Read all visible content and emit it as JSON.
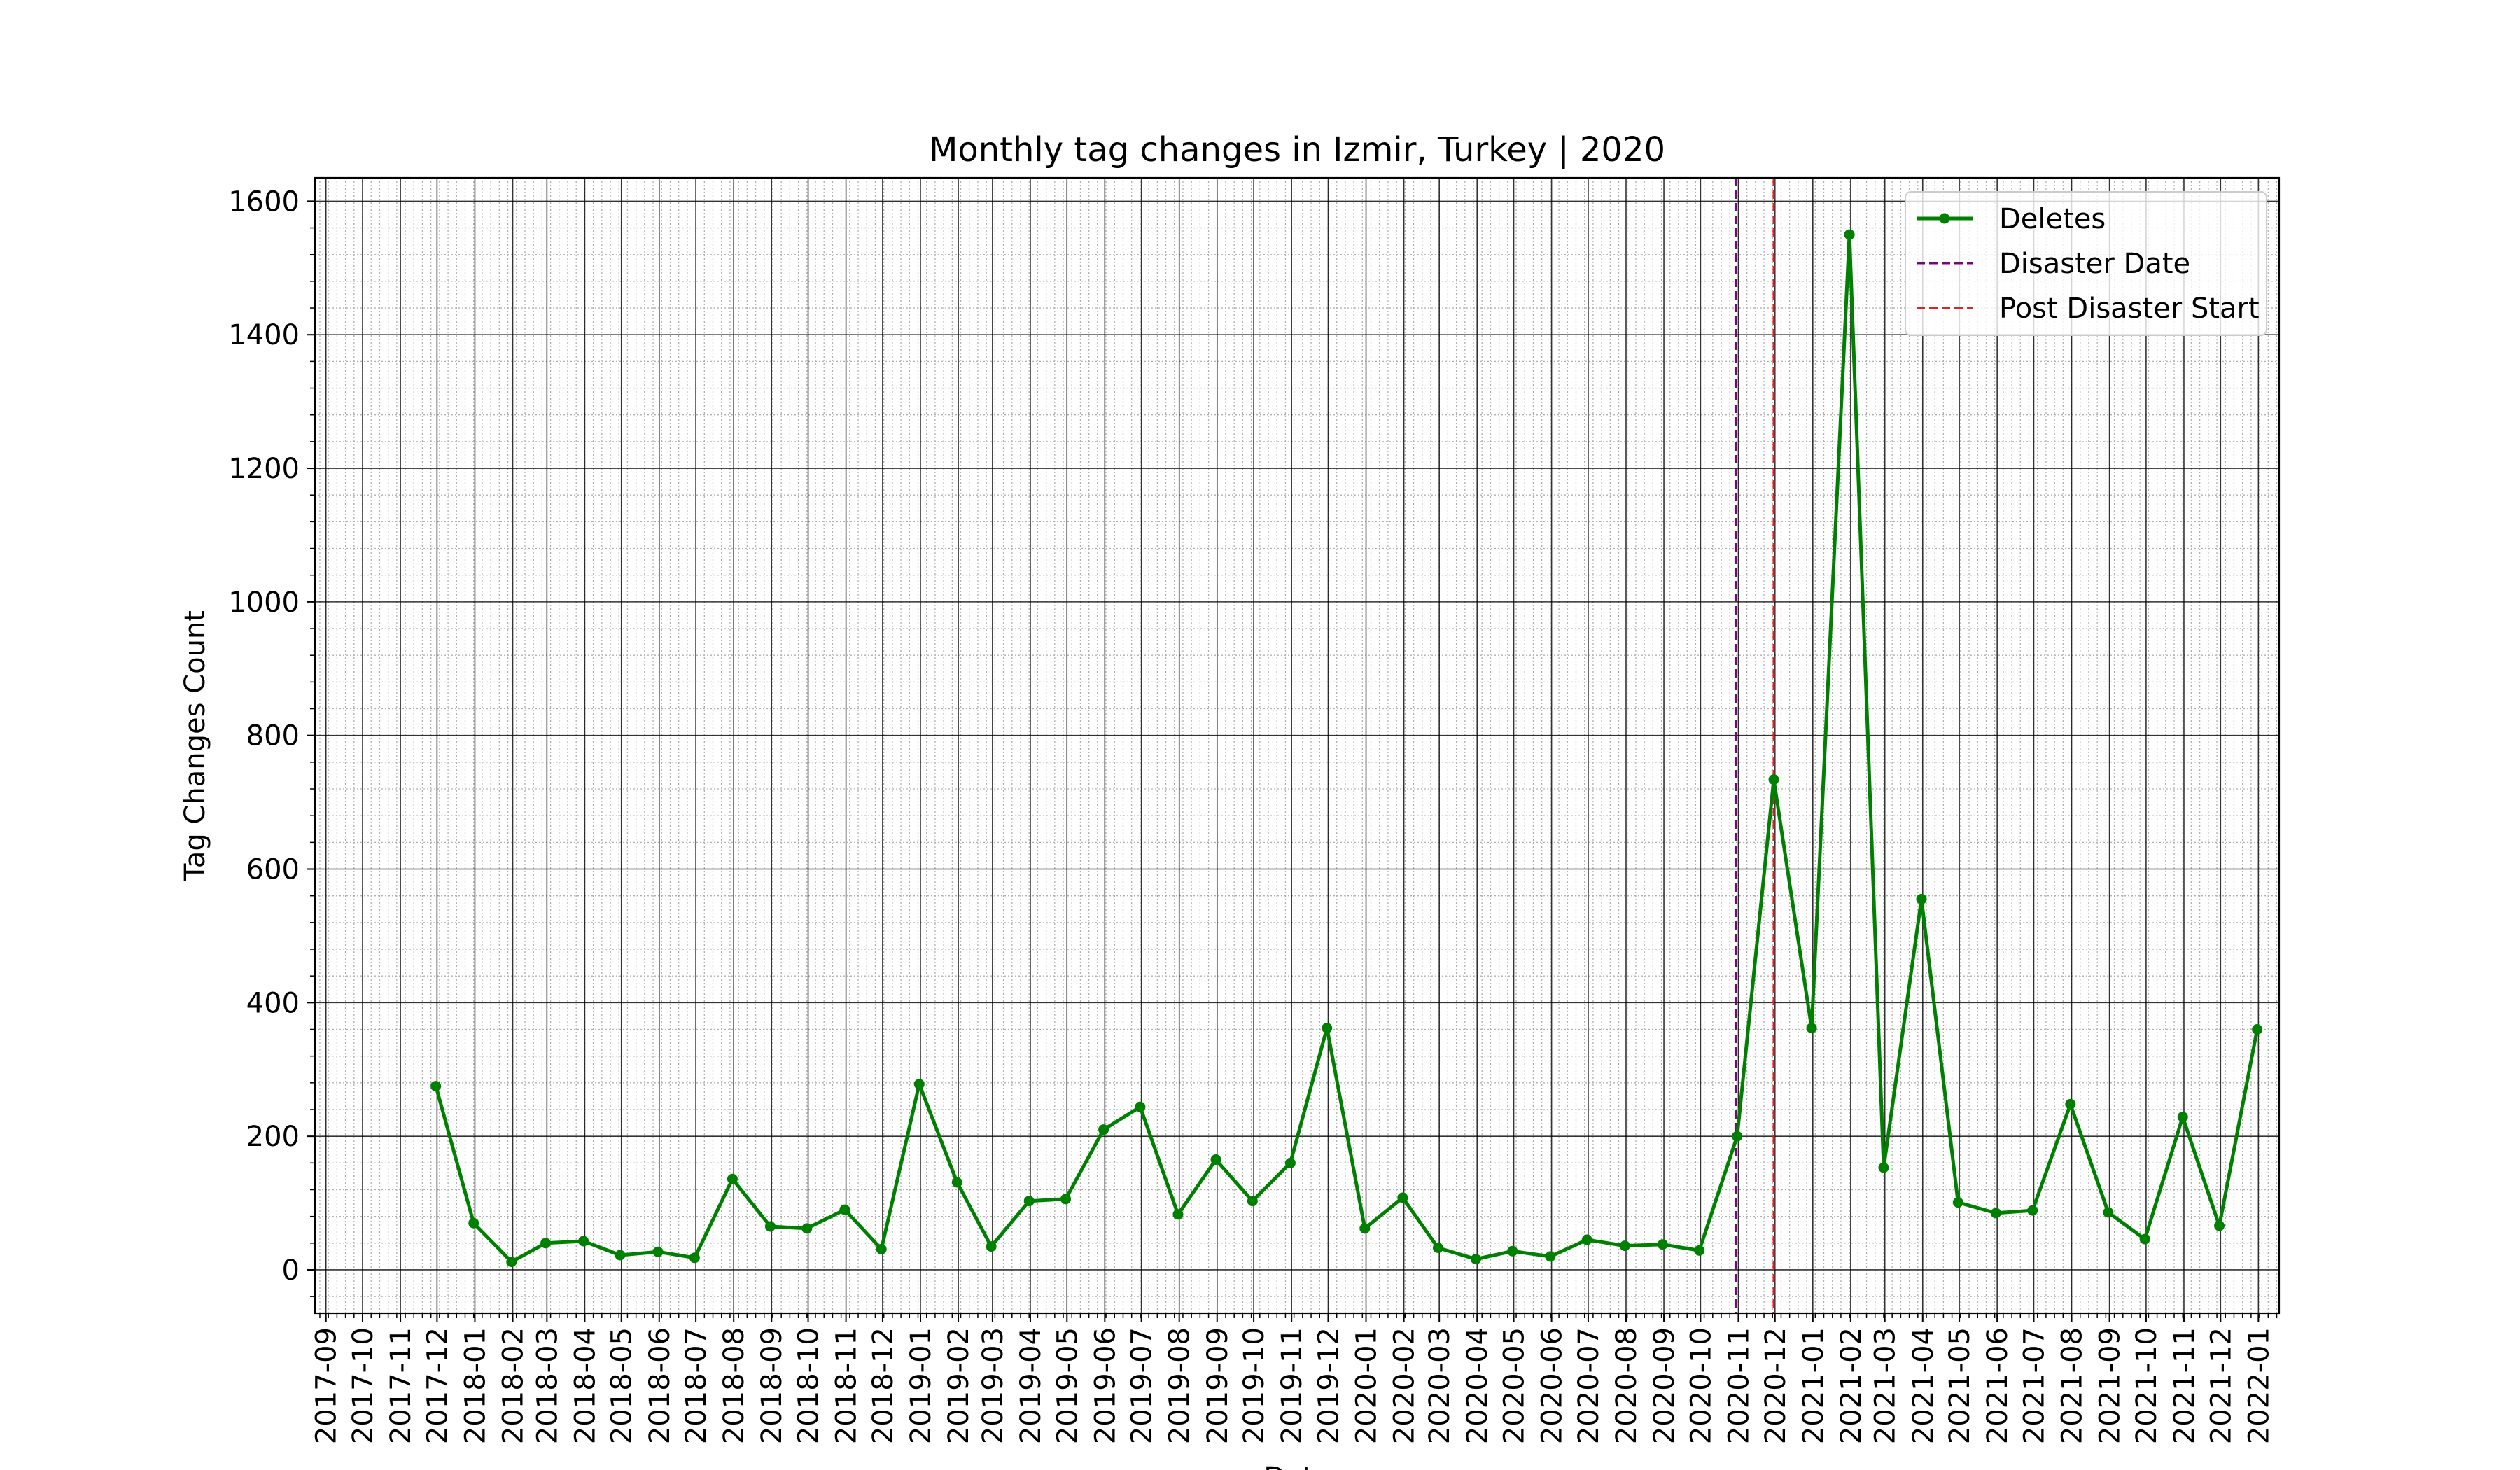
{
  "chart_data": {
    "type": "line",
    "title": "Monthly tag changes in Izmir, Turkey | 2020",
    "xlabel": "Date",
    "ylabel": "Tag Changes Count",
    "x_tick_labels": [
      "2017-09",
      "2017-10",
      "2017-11",
      "2017-12",
      "2018-01",
      "2018-02",
      "2018-03",
      "2018-04",
      "2018-05",
      "2018-06",
      "2018-07",
      "2018-08",
      "2018-09",
      "2018-10",
      "2018-11",
      "2018-12",
      "2019-01",
      "2019-02",
      "2019-03",
      "2019-04",
      "2019-05",
      "2019-06",
      "2019-07",
      "2019-08",
      "2019-09",
      "2019-10",
      "2019-11",
      "2019-12",
      "2020-01",
      "2020-02",
      "2020-03",
      "2020-04",
      "2020-05",
      "2020-06",
      "2020-07",
      "2020-08",
      "2020-09",
      "2020-10",
      "2020-11",
      "2020-12",
      "2021-01",
      "2021-02",
      "2021-03",
      "2021-04",
      "2021-05",
      "2021-06",
      "2021-07",
      "2021-08",
      "2021-09",
      "2021-10",
      "2021-11",
      "2021-12",
      "2022-01"
    ],
    "xlim": [
      "2017-08-23",
      "2022-01-18"
    ],
    "ylim": [
      -65,
      1635
    ],
    "y_ticks": [
      0,
      200,
      400,
      600,
      800,
      1000,
      1200,
      1400,
      1600
    ],
    "grid": true,
    "legend_position": "top-right",
    "series": [
      {
        "name": "Deletes",
        "color": "#008000",
        "marker": "circle",
        "points": [
          [
            "2017-11-30",
            275
          ],
          [
            "2017-12-31",
            70
          ],
          [
            "2018-01-31",
            12
          ],
          [
            "2018-02-28",
            40
          ],
          [
            "2018-03-31",
            43
          ],
          [
            "2018-04-30",
            22
          ],
          [
            "2018-05-31",
            27
          ],
          [
            "2018-06-30",
            18
          ],
          [
            "2018-07-31",
            136
          ],
          [
            "2018-08-31",
            65
          ],
          [
            "2018-09-30",
            62
          ],
          [
            "2018-10-31",
            90
          ],
          [
            "2018-11-30",
            31
          ],
          [
            "2018-12-31",
            278
          ],
          [
            "2019-01-31",
            131
          ],
          [
            "2019-02-28",
            35
          ],
          [
            "2019-03-31",
            103
          ],
          [
            "2019-04-30",
            106
          ],
          [
            "2019-05-31",
            210
          ],
          [
            "2019-06-30",
            244
          ],
          [
            "2019-07-31",
            83
          ],
          [
            "2019-08-31",
            165
          ],
          [
            "2019-09-30",
            103
          ],
          [
            "2019-10-31",
            160
          ],
          [
            "2019-11-30",
            362
          ],
          [
            "2019-12-31",
            62
          ],
          [
            "2020-01-31",
            108
          ],
          [
            "2020-02-29",
            33
          ],
          [
            "2020-03-31",
            16
          ],
          [
            "2020-04-30",
            28
          ],
          [
            "2020-05-31",
            20
          ],
          [
            "2020-06-30",
            45
          ],
          [
            "2020-07-31",
            36
          ],
          [
            "2020-08-31",
            38
          ],
          [
            "2020-09-30",
            29
          ],
          [
            "2020-10-31",
            200
          ],
          [
            "2020-11-30",
            734
          ],
          [
            "2020-12-31",
            362
          ],
          [
            "2021-01-31",
            1550
          ],
          [
            "2021-02-28",
            153
          ],
          [
            "2021-03-31",
            555
          ],
          [
            "2021-04-30",
            101
          ],
          [
            "2021-05-31",
            85
          ],
          [
            "2021-06-30",
            89
          ],
          [
            "2021-07-31",
            248
          ],
          [
            "2021-08-31",
            86
          ],
          [
            "2021-09-30",
            46
          ],
          [
            "2021-10-31",
            229
          ],
          [
            "2021-11-30",
            66
          ],
          [
            "2021-12-31",
            360
          ]
        ]
      }
    ],
    "vlines": [
      {
        "name": "Disaster Date",
        "date": "2020-10-30",
        "color": "#800080",
        "style": "dashed"
      },
      {
        "name": "Post Disaster Start",
        "date": "2020-11-30",
        "color": "#d62728",
        "style": "dashed"
      }
    ]
  }
}
